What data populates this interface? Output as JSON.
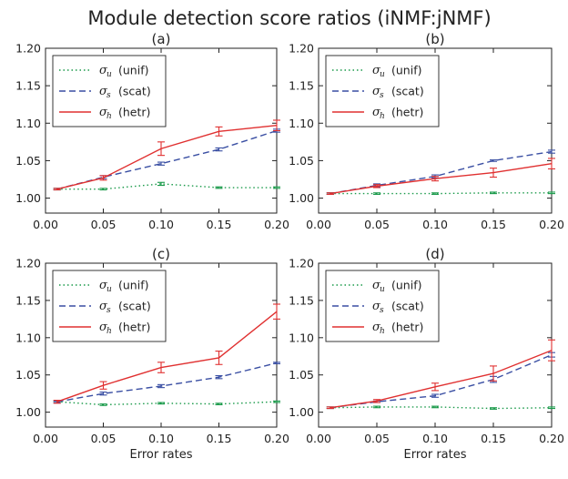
{
  "title": "Module detection score ratios (iNMF:jNMF)",
  "colors": {
    "unif": "#1a9a4a",
    "scat": "#3a4fa3",
    "hetr": "#e03030"
  },
  "chart_data": [
    {
      "type": "line",
      "title": "(a)",
      "xlabel": "",
      "x": [
        0.01,
        0.05,
        0.1,
        0.15,
        0.2
      ],
      "xticks": [
        "0.00",
        "0.05",
        "0.10",
        "0.15",
        "0.20"
      ],
      "yticks": [
        "1.00",
        "1.05",
        "1.10",
        "1.15",
        "1.20"
      ],
      "xlim": [
        0,
        0.2
      ],
      "ylim": [
        0.98,
        1.2
      ],
      "legend_position": "upper-left",
      "series": [
        {
          "key": "unif",
          "symbol": "σ",
          "sub": "u",
          "label": "(unif)",
          "style": "dotted",
          "values": [
            1.012,
            1.012,
            1.019,
            1.014,
            1.014
          ],
          "err": [
            0.001,
            0.001,
            0.002,
            0.001,
            0.001
          ]
        },
        {
          "key": "scat",
          "symbol": "σ",
          "sub": "s",
          "label": "(scat)",
          "style": "dashed",
          "values": [
            1.012,
            1.028,
            1.046,
            1.065,
            1.09
          ],
          "err": [
            0.001,
            0.002,
            0.002,
            0.002,
            0.002
          ]
        },
        {
          "key": "hetr",
          "symbol": "σ",
          "sub": "h",
          "label": "(hetr)",
          "style": "solid",
          "values": [
            1.012,
            1.027,
            1.066,
            1.089,
            1.097
          ],
          "err": [
            0.001,
            0.003,
            0.009,
            0.006,
            0.007
          ]
        }
      ]
    },
    {
      "type": "line",
      "title": "(b)",
      "xlabel": "",
      "x": [
        0.01,
        0.05,
        0.1,
        0.15,
        0.2
      ],
      "xticks": [
        "0.00",
        "0.05",
        "0.10",
        "0.15",
        "0.20"
      ],
      "yticks": [
        "1.00",
        "1.05",
        "1.10",
        "1.15",
        "1.20"
      ],
      "xlim": [
        0,
        0.2
      ],
      "ylim": [
        0.98,
        1.2
      ],
      "legend_position": "upper-left",
      "series": [
        {
          "key": "unif",
          "symbol": "σ",
          "sub": "u",
          "label": "(unif)",
          "style": "dotted",
          "values": [
            1.006,
            1.006,
            1.006,
            1.007,
            1.007
          ],
          "err": [
            0.001,
            0.001,
            0.001,
            0.001,
            0.001
          ]
        },
        {
          "key": "scat",
          "symbol": "σ",
          "sub": "s",
          "label": "(scat)",
          "style": "dashed",
          "values": [
            1.006,
            1.017,
            1.029,
            1.05,
            1.062
          ],
          "err": [
            0.001,
            0.002,
            0.002,
            0.001,
            0.002
          ]
        },
        {
          "key": "hetr",
          "symbol": "σ",
          "sub": "h",
          "label": "(hetr)",
          "style": "solid",
          "values": [
            1.006,
            1.016,
            1.026,
            1.034,
            1.046
          ],
          "err": [
            0.001,
            0.002,
            0.003,
            0.006,
            0.007
          ]
        }
      ]
    },
    {
      "type": "line",
      "title": "(c)",
      "xlabel": "Error rates",
      "x": [
        0.01,
        0.05,
        0.1,
        0.15,
        0.2
      ],
      "xticks": [
        "0.00",
        "0.05",
        "0.10",
        "0.15",
        "0.20"
      ],
      "yticks": [
        "1.00",
        "1.05",
        "1.10",
        "1.15",
        "1.20"
      ],
      "xlim": [
        0,
        0.2
      ],
      "ylim": [
        0.98,
        1.2
      ],
      "legend_position": "upper-left",
      "series": [
        {
          "key": "unif",
          "symbol": "σ",
          "sub": "u",
          "label": "(unif)",
          "style": "dotted",
          "values": [
            1.014,
            1.01,
            1.012,
            1.011,
            1.014
          ],
          "err": [
            0.001,
            0.001,
            0.001,
            0.001,
            0.001
          ]
        },
        {
          "key": "scat",
          "symbol": "σ",
          "sub": "s",
          "label": "(scat)",
          "style": "dashed",
          "values": [
            1.014,
            1.025,
            1.035,
            1.047,
            1.066
          ],
          "err": [
            0.001,
            0.002,
            0.002,
            0.002,
            0.001
          ]
        },
        {
          "key": "hetr",
          "symbol": "σ",
          "sub": "h",
          "label": "(hetr)",
          "style": "solid",
          "values": [
            1.014,
            1.036,
            1.06,
            1.073,
            1.135
          ],
          "err": [
            0.002,
            0.005,
            0.007,
            0.009,
            0.01
          ]
        }
      ]
    },
    {
      "type": "line",
      "title": "(d)",
      "xlabel": "Error rates",
      "x": [
        0.01,
        0.05,
        0.1,
        0.15,
        0.2
      ],
      "xticks": [
        "0.00",
        "0.05",
        "0.10",
        "0.15",
        "0.20"
      ],
      "yticks": [
        "1.00",
        "1.05",
        "1.10",
        "1.15",
        "1.20"
      ],
      "xlim": [
        0,
        0.2
      ],
      "ylim": [
        0.98,
        1.2
      ],
      "legend_position": "upper-left",
      "series": [
        {
          "key": "unif",
          "symbol": "σ",
          "sub": "u",
          "label": "(unif)",
          "style": "dotted",
          "values": [
            1.006,
            1.007,
            1.007,
            1.005,
            1.006
          ],
          "err": [
            0.001,
            0.001,
            0.001,
            0.001,
            0.001
          ]
        },
        {
          "key": "scat",
          "symbol": "σ",
          "sub": "s",
          "label": "(scat)",
          "style": "dashed",
          "values": [
            1.006,
            1.014,
            1.022,
            1.044,
            1.077
          ],
          "err": [
            0.001,
            0.001,
            0.002,
            0.004,
            0.003
          ]
        },
        {
          "key": "hetr",
          "symbol": "σ",
          "sub": "h",
          "label": "(hetr)",
          "style": "solid",
          "values": [
            1.006,
            1.015,
            1.034,
            1.052,
            1.083
          ],
          "err": [
            0.001,
            0.002,
            0.005,
            0.01,
            0.014
          ]
        }
      ]
    }
  ]
}
